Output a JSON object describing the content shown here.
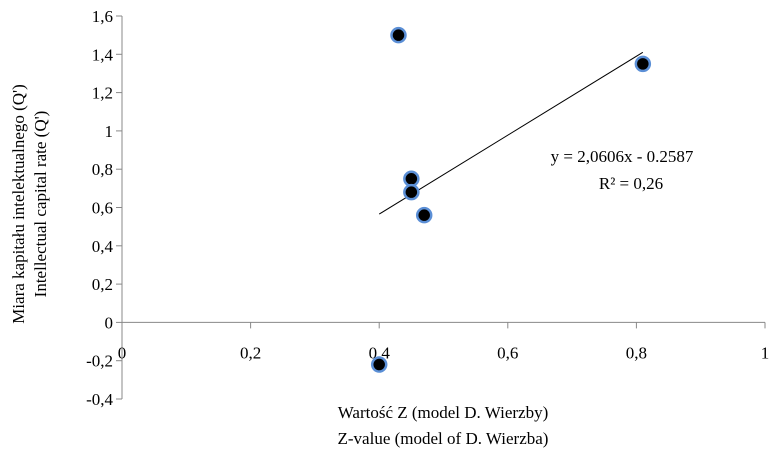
{
  "chart_data": {
    "type": "scatter",
    "x": [
      0.4,
      0.43,
      0.45,
      0.45,
      0.47,
      0.81
    ],
    "y": [
      -0.22,
      1.5,
      0.75,
      0.68,
      0.56,
      1.35
    ],
    "xlim": [
      0,
      1
    ],
    "ylim": [
      -0.4,
      1.6
    ],
    "xticks": [
      "0",
      "0,2",
      "0,4",
      "0,6",
      "0,8",
      "1"
    ],
    "yticks": [
      "-0,4",
      "-0,2",
      "0",
      "0,2",
      "0,4",
      "0,6",
      "0,8",
      "1",
      "1,2",
      "1,4",
      "1,6"
    ],
    "xlabel_line1": "Wartość Z (model D. Wierzby)",
    "xlabel_line2": "Z-value (model of D. Wierzba)",
    "ylabel_line1": "Miara kapitału intelektualnego (Q')",
    "ylabel_line2": "Intellectual capital rate  (Q')",
    "trendline": {
      "slope": 2.0606,
      "intercept": -0.2587,
      "x_range": [
        0.4,
        0.81
      ],
      "equation": "y = 2,0606x - 0.2587",
      "r2": "R² = 0,26"
    },
    "grid": false,
    "legend": "none",
    "colors": {
      "marker_fill": "#000000",
      "marker_stroke": "#5b8fd6",
      "trendline": "#000000"
    }
  }
}
